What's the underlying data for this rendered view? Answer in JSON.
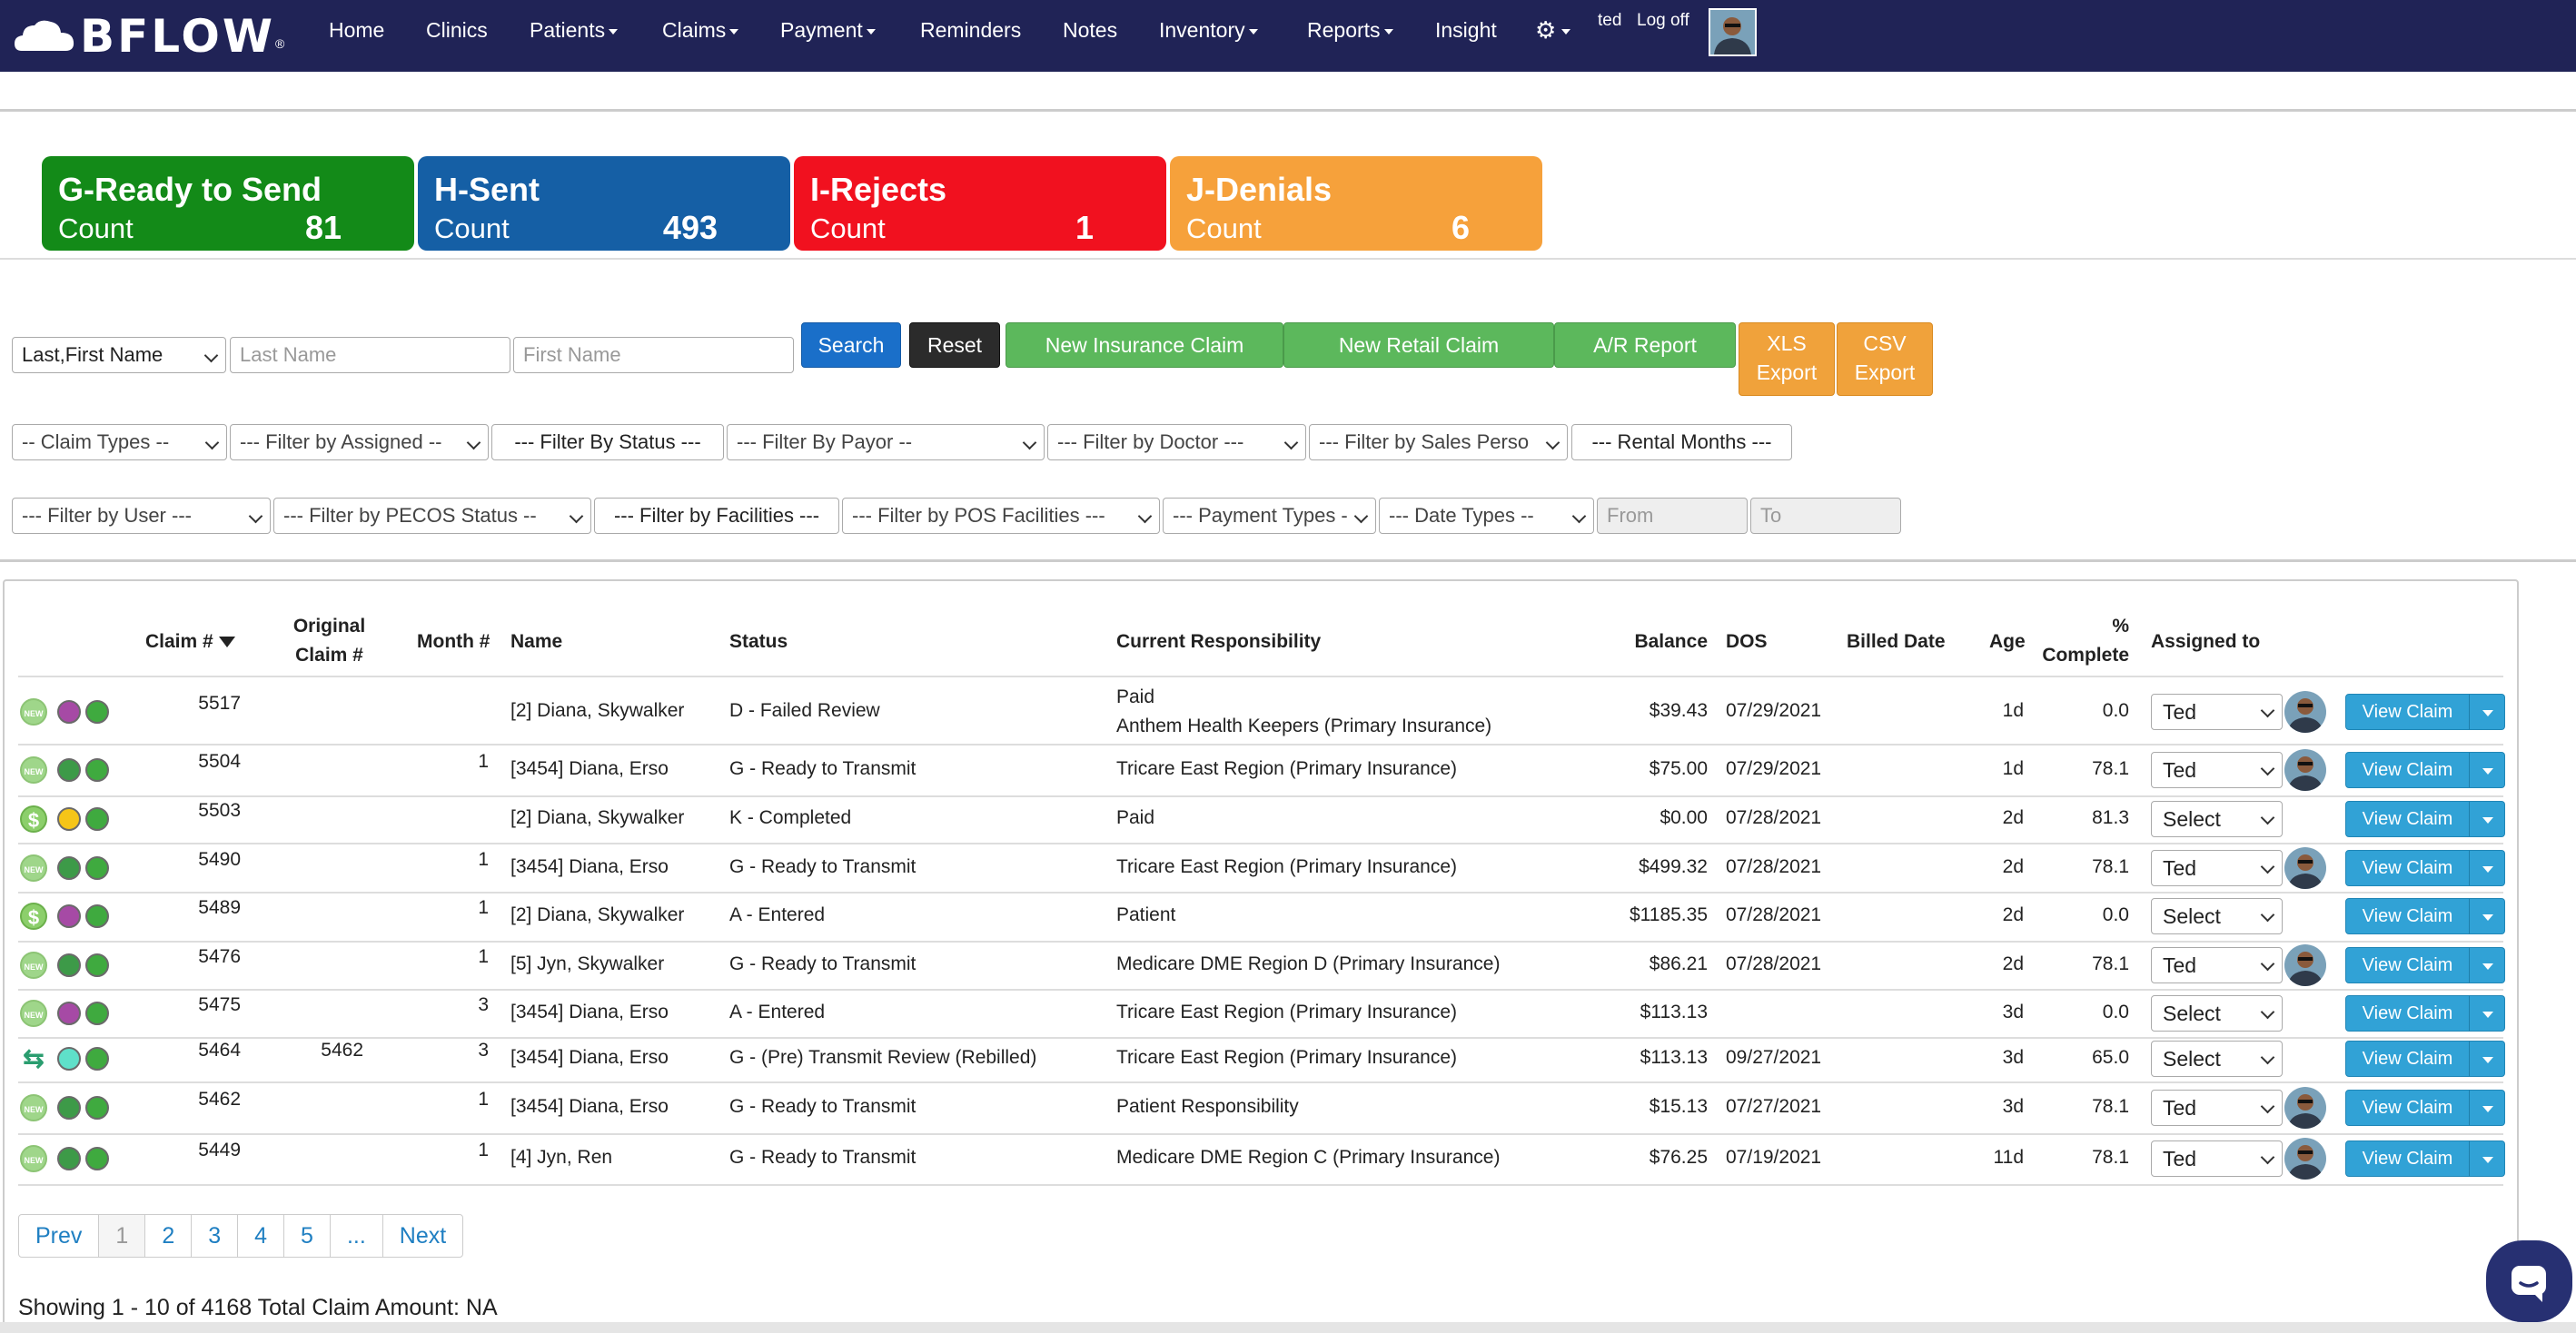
{
  "nav": {
    "brand": "BFLOW",
    "items": [
      {
        "label": "Home",
        "caret": false
      },
      {
        "label": "Clinics",
        "caret": false
      },
      {
        "label": "Patients",
        "caret": true
      },
      {
        "label": "Claims",
        "caret": true
      },
      {
        "label": "Payment",
        "caret": true
      },
      {
        "label": "Reminders",
        "caret": false
      },
      {
        "label": "Notes",
        "caret": false
      },
      {
        "label": "Inventory",
        "caret": true
      },
      {
        "label": "Reports",
        "caret": true
      },
      {
        "label": "Insight",
        "caret": false
      }
    ],
    "user": "ted",
    "logoff": "Log off"
  },
  "cards": [
    {
      "title": "G-Ready to Send",
      "label": "Count",
      "count": "81",
      "color": "#138a18"
    },
    {
      "title": "H-Sent",
      "label": "Count",
      "count": "493",
      "color": "#155fa5"
    },
    {
      "title": "I-Rejects",
      "label": "Count",
      "count": "1",
      "color": "#f1111f"
    },
    {
      "title": "J-Denials",
      "label": "Count",
      "count": "6",
      "color": "#f6a13b"
    }
  ],
  "search": {
    "name_mode": "Last,First Name",
    "last_placeholder": "Last Name",
    "first_placeholder": "First Name",
    "search": "Search",
    "reset": "Reset",
    "new_insurance": "New Insurance Claim",
    "new_retail": "New Retail Claim",
    "ar_report": "A/R Report",
    "xls1": "XLS",
    "xls2": "Export",
    "csv1": "CSV",
    "csv2": "Export"
  },
  "filters1": [
    "-- Claim Types --",
    "--- Filter by Assigned --",
    "--- Filter By Status ---",
    "--- Filter By Payor --",
    "--- Filter by Doctor ---",
    "--- Filter by Sales Perso",
    "--- Rental Months ---"
  ],
  "filters2": [
    "--- Filter by User ---",
    "--- Filter by PECOS Status --",
    "--- Filter by Facilities ---",
    "--- Filter by POS Facilities ---",
    "--- Payment Types -",
    "--- Date Types --",
    "From",
    "To"
  ],
  "table": {
    "headers": {
      "claim": "Claim #",
      "orig1": "Original",
      "orig2": "Claim #",
      "month": "Month #",
      "name": "Name",
      "status": "Status",
      "resp": "Current Responsibility",
      "balance": "Balance",
      "dos": "DOS",
      "billed": "Billed Date",
      "age": "Age",
      "pct1": "%",
      "pct2": "Complete",
      "assigned": "Assigned to"
    },
    "view_label": "View Claim",
    "rows": [
      {
        "icon": "new",
        "d1": "#a64aa5",
        "d2": "#3d9a48",
        "d3": "#3faa3f",
        "claim": "5517",
        "orig": "",
        "month": "",
        "name": "[2] Diana, Skywalker",
        "status": "D - Failed Review",
        "resp": "Paid",
        "resp2": "Anthem Health Keepers (Primary Insurance)",
        "balance": "$39.43",
        "dos": "07/29/2021",
        "billed": "",
        "age": "1d",
        "pct": "0.0",
        "assigned": "Ted",
        "avatar": true
      },
      {
        "icon": "new",
        "d1": "#3d9a48",
        "d2": "#3d9a48",
        "d3": "#3faa3f",
        "claim": "5504",
        "orig": "",
        "month": "1",
        "name": "[3454] Diana, Erso",
        "status": "G - Ready to Transmit",
        "resp": "Tricare East Region (Primary Insurance)",
        "resp2": "",
        "balance": "$75.00",
        "dos": "07/29/2021",
        "billed": "",
        "age": "1d",
        "pct": "78.1",
        "assigned": "Ted",
        "avatar": true
      },
      {
        "icon": "dollar",
        "d1": "#f5c518",
        "d2": "#3d9a48",
        "d3": "#3faa3f",
        "claim": "5503",
        "orig": "",
        "month": "",
        "name": "[2] Diana, Skywalker",
        "status": "K - Completed",
        "resp": "Paid",
        "resp2": "",
        "balance": "$0.00",
        "dos": "07/28/2021",
        "billed": "",
        "age": "2d",
        "pct": "81.3",
        "assigned": "Select",
        "avatar": false
      },
      {
        "icon": "new",
        "d1": "#3d9a48",
        "d2": "#3d9a48",
        "d3": "#3faa3f",
        "claim": "5490",
        "orig": "",
        "month": "1",
        "name": "[3454] Diana, Erso",
        "status": "G - Ready to Transmit",
        "resp": "Tricare East Region (Primary Insurance)",
        "resp2": "",
        "balance": "$499.32",
        "dos": "07/28/2021",
        "billed": "",
        "age": "2d",
        "pct": "78.1",
        "assigned": "Ted",
        "avatar": true
      },
      {
        "icon": "dollar",
        "d1": "#a64aa5",
        "d2": "#3d9a48",
        "d3": "#3faa3f",
        "claim": "5489",
        "orig": "",
        "month": "1",
        "name": "[2] Diana, Skywalker",
        "status": "A - Entered",
        "resp": "Patient",
        "resp2": "",
        "balance": "$1185.35",
        "dos": "07/28/2021",
        "billed": "",
        "age": "2d",
        "pct": "0.0",
        "assigned": "Select",
        "avatar": false
      },
      {
        "icon": "new",
        "d1": "#3d9a48",
        "d2": "#3d9a48",
        "d3": "#3faa3f",
        "claim": "5476",
        "orig": "",
        "month": "1",
        "name": "[5] Jyn, Skywalker",
        "status": "G - Ready to Transmit",
        "resp": "Medicare DME Region D (Primary Insurance)",
        "resp2": "",
        "balance": "$86.21",
        "dos": "07/28/2021",
        "billed": "",
        "age": "2d",
        "pct": "78.1",
        "assigned": "Ted",
        "avatar": true
      },
      {
        "icon": "new",
        "d1": "#a64aa5",
        "d2": "#3d9a48",
        "d3": "#3faa3f",
        "claim": "5475",
        "orig": "",
        "month": "3",
        "name": "[3454] Diana, Erso",
        "status": "A - Entered",
        "resp": "Tricare East Region (Primary Insurance)",
        "resp2": "",
        "balance": "$113.13",
        "dos": "",
        "billed": "",
        "age": "3d",
        "pct": "0.0",
        "assigned": "Select",
        "avatar": false
      },
      {
        "icon": "refresh",
        "d1": "#5fe0c9",
        "d2": "#3d9a48",
        "d3": "#3faa3f",
        "claim": "5464",
        "orig": "5462",
        "month": "3",
        "name": "[3454] Diana, Erso",
        "status": "G - (Pre) Transmit Review (Rebilled)",
        "resp": "Tricare East Region (Primary Insurance)",
        "resp2": "",
        "balance": "$113.13",
        "dos": "09/27/2021",
        "billed": "",
        "age": "3d",
        "pct": "65.0",
        "assigned": "Select",
        "avatar": false
      },
      {
        "icon": "new",
        "d1": "#3d9a48",
        "d2": "#3d9a48",
        "d3": "#3faa3f",
        "claim": "5462",
        "orig": "",
        "month": "1",
        "name": "[3454] Diana, Erso",
        "status": "G - Ready to Transmit",
        "resp": "Patient Responsibility",
        "resp2": "",
        "balance": "$15.13",
        "dos": "07/27/2021",
        "billed": "",
        "age": "3d",
        "pct": "78.1",
        "assigned": "Ted",
        "avatar": true
      },
      {
        "icon": "new",
        "d1": "#3d9a48",
        "d2": "#3d9a48",
        "d3": "#3faa3f",
        "claim": "5449",
        "orig": "",
        "month": "1",
        "name": "[4] Jyn, Ren",
        "status": "G - Ready to Transmit",
        "resp": "Medicare DME Region C (Primary Insurance)",
        "resp2": "",
        "balance": "$76.25",
        "dos": "07/19/2021",
        "billed": "",
        "age": "11d",
        "pct": "78.1",
        "assigned": "Ted",
        "avatar": true
      }
    ]
  },
  "pagination": {
    "prev": "Prev",
    "pages": [
      "1",
      "2",
      "3",
      "4",
      "5",
      "..."
    ],
    "next": "Next",
    "active": "1"
  },
  "summary": "Showing 1 - 10 of 4168 Total Claim Amount: NA"
}
